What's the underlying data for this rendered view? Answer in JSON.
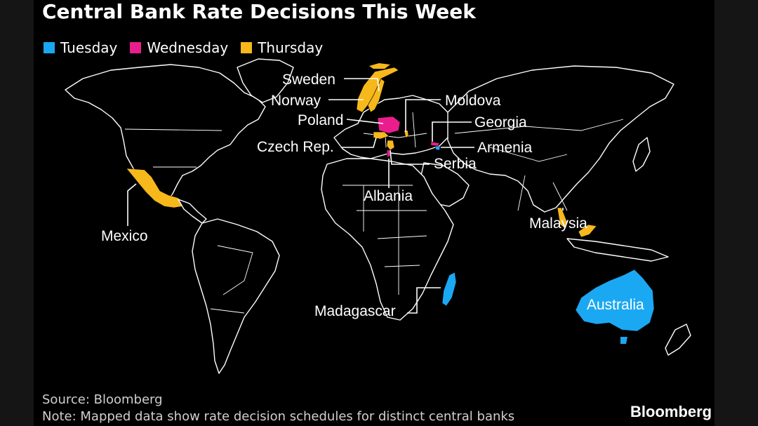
{
  "title": "Central Bank Rate Decisions This Week",
  "legend": [
    {
      "label": "Tuesday",
      "color": "#1ba8f2"
    },
    {
      "label": "Wednesday",
      "color": "#e91e8c"
    },
    {
      "label": "Thursday",
      "color": "#f6b81b"
    }
  ],
  "countries": {
    "sweden": {
      "label": "Sweden",
      "day": "Thursday"
    },
    "norway": {
      "label": "Norway",
      "day": "Thursday"
    },
    "poland": {
      "label": "Poland",
      "day": "Wednesday"
    },
    "czech": {
      "label": "Czech Rep.",
      "day": "Thursday"
    },
    "moldova": {
      "label": "Moldova",
      "day": "Thursday"
    },
    "georgia": {
      "label": "Georgia",
      "day": "Wednesday"
    },
    "armenia": {
      "label": "Armenia",
      "day": "Tuesday"
    },
    "serbia": {
      "label": "Serbia",
      "day": "Thursday"
    },
    "albania": {
      "label": "Albania",
      "day": "Wednesday"
    },
    "mexico": {
      "label": "Mexico",
      "day": "Thursday"
    },
    "malaysia": {
      "label": "Malaysia",
      "day": "Thursday"
    },
    "madagascar": {
      "label": "Madagascar",
      "day": "Tuesday"
    },
    "australia": {
      "label": "Australia",
      "day": "Tuesday"
    }
  },
  "source": "Source: Bloomberg",
  "note": "Note: Mapped data show rate decision schedules for distinct central banks",
  "brand": "Bloomberg"
}
